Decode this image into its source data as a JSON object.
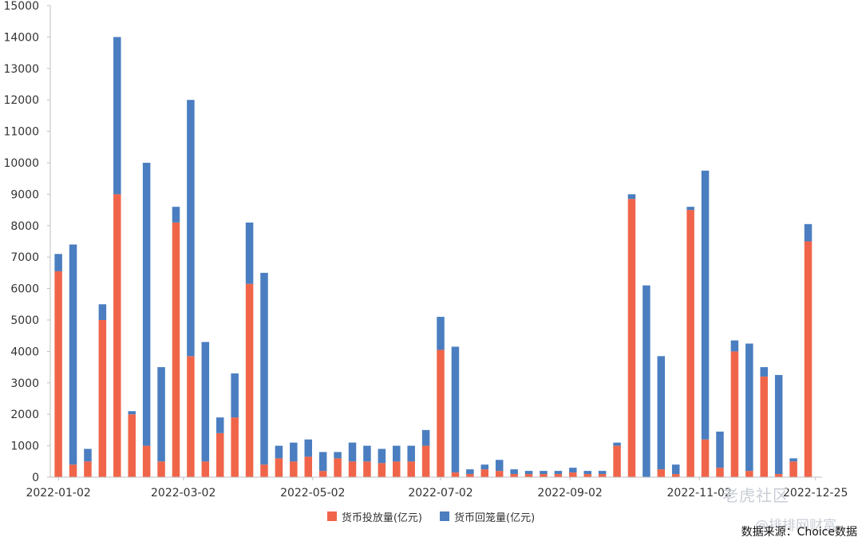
{
  "chart_data": {
    "type": "bar",
    "stacked": true,
    "title": "",
    "xlabel": "",
    "ylabel": "",
    "ylim": [
      0,
      15000
    ],
    "yticks": [
      0,
      1000,
      2000,
      3000,
      4000,
      5000,
      6000,
      7000,
      8000,
      9000,
      10000,
      11000,
      12000,
      13000,
      14000,
      15000
    ],
    "x_tick_labels": [
      {
        "label": "2022-01-02",
        "index": 0
      },
      {
        "label": "2022-03-02",
        "index": 8.5
      },
      {
        "label": "2022-05-02",
        "index": 17.3
      },
      {
        "label": "2022-07-02",
        "index": 26
      },
      {
        "label": "2022-09-02",
        "index": 34.8
      },
      {
        "label": "2022-11-02",
        "index": 43.6
      },
      {
        "label": "2022-12-25",
        "index": 51.5
      }
    ],
    "grid": false,
    "legend_position": "bottom",
    "series": [
      {
        "name": "货币投放量(亿元)",
        "color": "#f0654a",
        "values": [
          6550,
          400,
          500,
          5000,
          9000,
          2000,
          1000,
          500,
          8100,
          3850,
          500,
          1400,
          1900,
          6150,
          400,
          600,
          500,
          650,
          200,
          600,
          500,
          500,
          450,
          500,
          500,
          1000,
          4050,
          150,
          100,
          250,
          200,
          100,
          100,
          100,
          100,
          150,
          100,
          100,
          1000,
          8850,
          0,
          250,
          100,
          8500,
          1200,
          300,
          4000,
          200,
          3200,
          100,
          500,
          7500
        ]
      },
      {
        "name": "货币回笼量(亿元)",
        "color": "#4a7ec0",
        "values": [
          550,
          7000,
          400,
          500,
          5000,
          100,
          9000,
          3000,
          500,
          8150,
          3800,
          500,
          1400,
          1950,
          6100,
          400,
          600,
          550,
          600,
          200,
          600,
          500,
          450,
          500,
          500,
          500,
          1050,
          4000,
          150,
          150,
          350,
          150,
          100,
          100,
          100,
          150,
          100,
          100,
          100,
          150,
          6100,
          3600,
          300,
          100,
          8550,
          1150,
          350,
          4050,
          300,
          3150,
          100,
          550
        ]
      }
    ]
  },
  "legend": {
    "items": [
      {
        "label": "货币投放量(亿元)",
        "color": "#f0654a"
      },
      {
        "label": "货币回笼量(亿元)",
        "color": "#4a7ec0"
      }
    ]
  },
  "source_text": "数据来源：Choice数据",
  "watermark": {
    "line1": "老虎社区",
    "line2": "@排排网财富"
  }
}
